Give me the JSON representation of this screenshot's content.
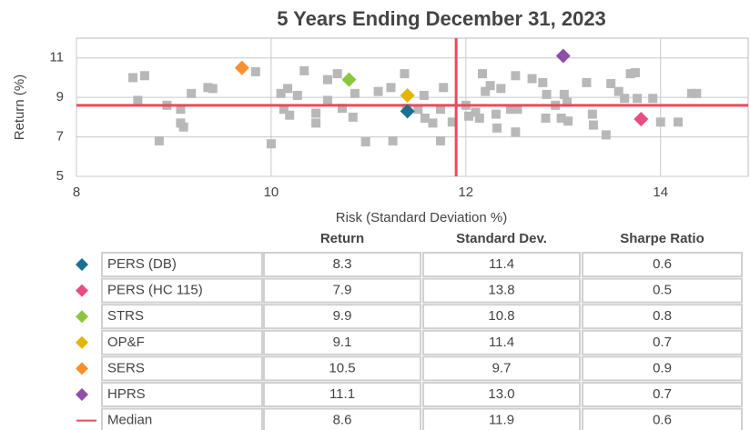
{
  "chart_data": {
    "type": "scatter",
    "title": "5 Years Ending December 31, 2023",
    "xlabel": "Risk (Standard Deviation %)",
    "ylabel": "Return (%)",
    "xlim": [
      8,
      14.9
    ],
    "ylim": [
      5,
      12
    ],
    "xticks": [
      8,
      10,
      12,
      14
    ],
    "yticks": [
      5,
      7,
      9,
      11
    ],
    "grid": true,
    "series": [
      {
        "color": "#b8b8b8",
        "marker": "square",
        "x": [
          8.58,
          8.7,
          8.63,
          8.85,
          8.93,
          9.07,
          9.07,
          9.1,
          9.18,
          9.35,
          9.4,
          9.84,
          10.0,
          10.1,
          10.13,
          10.17,
          10.19,
          10.27,
          10.34,
          10.46,
          10.46,
          10.58,
          10.58,
          10.68,
          10.73,
          10.84,
          10.86,
          10.97,
          11.1,
          11.23,
          11.25,
          11.37,
          11.39,
          11.51,
          11.57,
          11.58,
          11.66,
          11.74,
          11.74,
          11.77,
          11.86,
          12.0,
          12.03,
          12.1,
          12.14,
          12.17,
          12.2,
          12.25,
          12.31,
          12.32,
          12.36,
          12.46,
          12.51,
          12.53,
          12.51,
          12.68,
          12.79,
          12.83,
          12.82,
          12.92,
          12.98,
          13.01,
          13.04,
          13.05,
          13.24,
          13.3,
          13.31,
          13.44,
          13.49,
          13.57,
          13.63,
          13.69,
          13.74,
          13.76,
          13.92,
          14.0,
          14.18,
          14.32,
          14.37
        ],
        "values": [
          10.0,
          10.1,
          8.85,
          6.8,
          8.6,
          8.4,
          7.7,
          7.5,
          9.2,
          9.5,
          9.45,
          10.3,
          6.65,
          9.2,
          8.4,
          9.45,
          8.1,
          9.1,
          10.35,
          8.2,
          7.7,
          9.9,
          8.85,
          10.2,
          8.45,
          8.0,
          9.2,
          6.75,
          9.3,
          9.5,
          6.8,
          10.2,
          8.45,
          8.4,
          9.1,
          7.95,
          7.7,
          8.4,
          6.8,
          9.5,
          7.75,
          8.6,
          8.05,
          8.25,
          7.95,
          10.2,
          9.3,
          9.6,
          8.15,
          7.45,
          9.45,
          8.4,
          10.1,
          8.4,
          7.25,
          9.95,
          9.75,
          9.15,
          7.95,
          8.6,
          7.95,
          9.15,
          8.75,
          7.8,
          9.75,
          8.15,
          7.6,
          7.1,
          9.7,
          9.3,
          8.95,
          10.2,
          10.25,
          8.95,
          8.95,
          7.75,
          7.75,
          9.2,
          9.2
        ]
      },
      {
        "name": "PERS (DB)",
        "color": "#1b6f8f",
        "marker": "diamond",
        "x": [
          11.4
        ],
        "values": [
          8.3
        ]
      },
      {
        "name": "PERS (HC 115)",
        "color": "#ea4c82",
        "marker": "diamond",
        "x": [
          13.8
        ],
        "values": [
          7.9
        ]
      },
      {
        "name": "STRS",
        "color": "#8cc63f",
        "marker": "diamond",
        "x": [
          10.8
        ],
        "values": [
          9.9
        ]
      },
      {
        "name": "OP&F",
        "color": "#e3b505",
        "marker": "diamond",
        "x": [
          11.4
        ],
        "values": [
          9.1
        ]
      },
      {
        "name": "SERS",
        "color": "#f7902d",
        "marker": "diamond",
        "x": [
          9.7
        ],
        "values": [
          10.5
        ]
      },
      {
        "name": "HPRS",
        "color": "#8e4fa8",
        "marker": "diamond",
        "x": [
          13.0
        ],
        "values": [
          11.1
        ]
      }
    ],
    "median": {
      "name": "Median",
      "color": "#ea4a5c",
      "x": 11.9,
      "y": 8.6
    }
  },
  "table": {
    "columns": [
      "Return",
      "Standard Dev.",
      "Sharpe Ratio"
    ],
    "rows": [
      [
        "8.3",
        "11.4",
        "0.6"
      ],
      [
        "7.9",
        "13.8",
        "0.5"
      ],
      [
        "9.9",
        "10.8",
        "0.8"
      ],
      [
        "9.1",
        "11.4",
        "0.7"
      ],
      [
        "10.5",
        "9.7",
        "0.9"
      ],
      [
        "11.1",
        "13.0",
        "0.7"
      ],
      [
        "8.6",
        "11.9",
        "0.6"
      ]
    ]
  }
}
